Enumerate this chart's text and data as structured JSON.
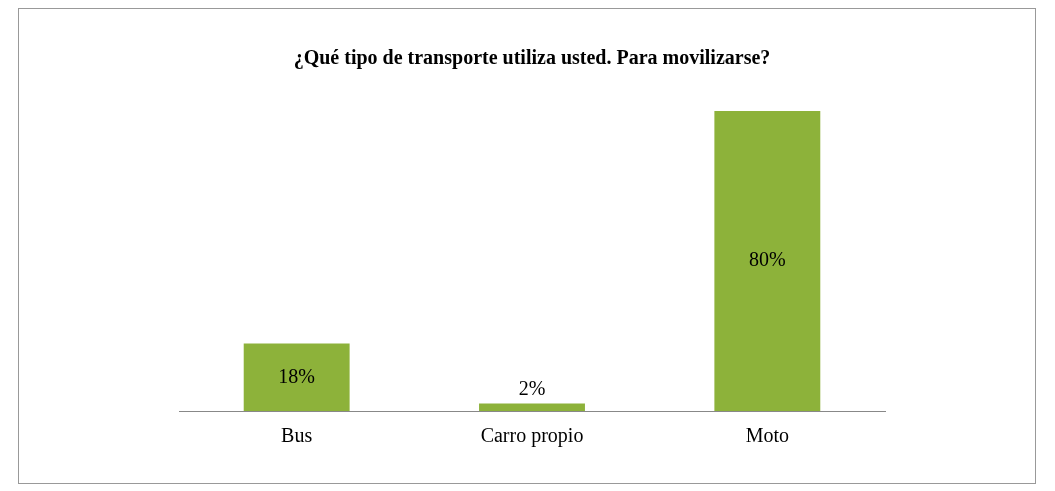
{
  "chart_data": {
    "type": "bar",
    "title": "¿Qué tipo de transporte utiliza usted. Para movilizarse?",
    "categories": [
      "Bus",
      "Carro propio",
      "Moto"
    ],
    "values": [
      18,
      2,
      80
    ],
    "value_labels": [
      "18%",
      "2%",
      "80%"
    ],
    "color": "#8db23a",
    "tick_labels": "x",
    "grid": false,
    "legend": false
  }
}
